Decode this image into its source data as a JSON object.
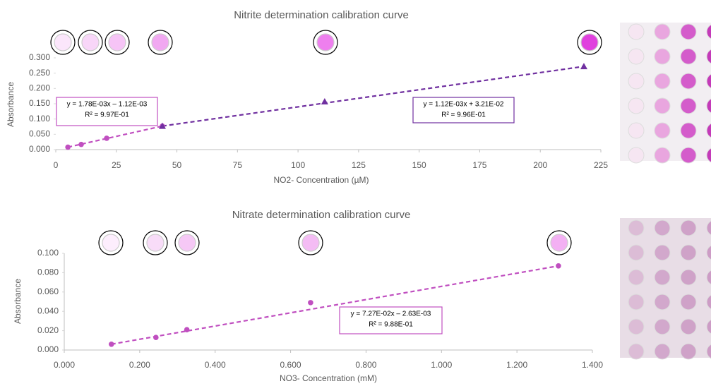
{
  "chart_data": [
    {
      "type": "scatter",
      "title": "Nitrite determination calibration curve",
      "x_label": "NO2- Concentration (µM)",
      "y_label": "Absorbance",
      "xlim": [
        0,
        225
      ],
      "xticks": [
        0,
        25,
        50,
        75,
        100,
        125,
        150,
        175,
        200,
        225
      ],
      "ylim": [
        0,
        0.3
      ],
      "yticks": [
        {
          "value": 0,
          "label": "0.000"
        },
        {
          "value": 0.05,
          "label": "0.050"
        },
        {
          "value": 0.1,
          "label": "0.100"
        },
        {
          "value": 0.15,
          "label": "0.150"
        },
        {
          "value": 0.2,
          "label": "0.200"
        },
        {
          "value": 0.25,
          "label": "0.250"
        },
        {
          "value": 0.3,
          "label": "0.300"
        }
      ],
      "series": [
        {
          "color": "#c04fc0",
          "marker": "circle",
          "x": [
            5,
            10.5,
            21,
            44
          ],
          "values": [
            0.008,
            0.017,
            0.037,
            0.077
          ]
        },
        {
          "color": "#7030a0",
          "marker": "triangle",
          "x": [
            44,
            111,
            218
          ],
          "values": [
            0.077,
            0.157,
            0.272
          ]
        }
      ],
      "annotations": [
        {
          "color": "#c04fc0",
          "lines": [
            "y = 1.78E-03x – 1.12E-03",
            "R² = 9.97E-01"
          ]
        },
        {
          "color": "#7030a0",
          "lines": [
            "y = 1.12E-03x + 3.21E-02",
            "R² = 9.96E-01"
          ]
        }
      ]
    },
    {
      "type": "scatter",
      "title": "Nitrate determination calibration curve",
      "x_label": "NO3- Concentration (mM)",
      "y_label": "Absorbance",
      "xlim": [
        0,
        1.4
      ],
      "xticks": [
        {
          "value": 0,
          "label": "0.000"
        },
        {
          "value": 0.2,
          "label": "0.200"
        },
        {
          "value": 0.4,
          "label": "0.400"
        },
        {
          "value": 0.6,
          "label": "0.600"
        },
        {
          "value": 0.8,
          "label": "0.800"
        },
        {
          "value": 1,
          "label": "1.000"
        },
        {
          "value": 1.2,
          "label": "1.200"
        },
        {
          "value": 1.4,
          "label": "1.400"
        }
      ],
      "ylim": [
        0,
        0.1
      ],
      "yticks": [
        {
          "value": 0,
          "label": "0.000"
        },
        {
          "value": 0.02,
          "label": "0.020"
        },
        {
          "value": 0.04,
          "label": "0.040"
        },
        {
          "value": 0.06,
          "label": "0.060"
        },
        {
          "value": 0.08,
          "label": "0.080"
        },
        {
          "value": 0.1,
          "label": "0.100"
        }
      ],
      "series": [
        {
          "color": "#c04fc0",
          "marker": "circle",
          "x": [
            0.125,
            0.243,
            0.325,
            0.653,
            1.31
          ],
          "values": [
            0.006,
            0.013,
            0.021,
            0.049,
            0.087
          ]
        }
      ],
      "annotations": [
        {
          "color": "#c04fc0",
          "lines": [
            "y = 7.27E-02x – 2.63E-03",
            "R² = 9.88E-01"
          ]
        }
      ]
    }
  ]
}
